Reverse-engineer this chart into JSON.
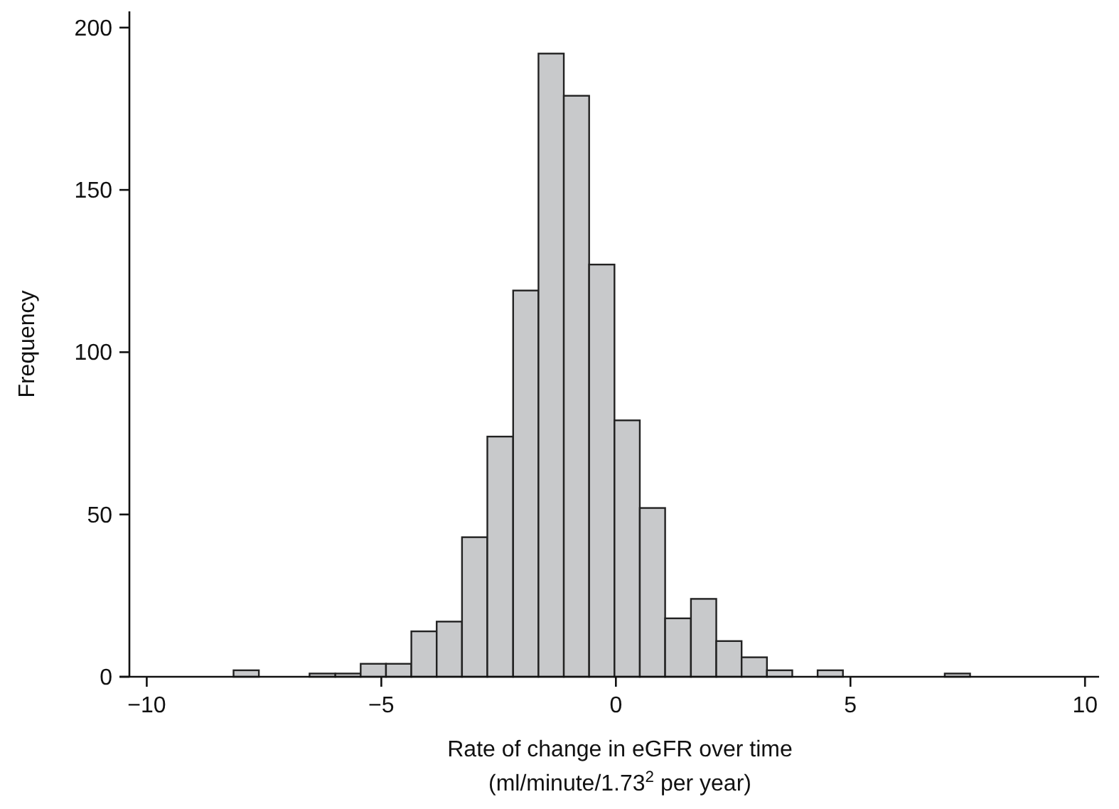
{
  "chart_data": {
    "type": "histogram",
    "xlabel": "Rate of change in eGFR over time\n(ml/minute/1.73$^{2}$ per year)",
    "ylabel": "Frequency",
    "bins": [
      -8.15,
      -7.61,
      -6.53,
      -5.98,
      -5.44,
      -4.9,
      -4.36,
      -3.82,
      -3.28,
      -2.74,
      -2.19,
      -1.65,
      -1.11,
      -0.57,
      -0.03,
      0.51,
      1.05,
      1.6,
      2.14,
      2.68,
      3.22,
      3.76,
      4.3,
      4.84,
      7.01,
      7.55
    ],
    "values": [
      2,
      0,
      1,
      1,
      4,
      4,
      14,
      17,
      43,
      74,
      119,
      192,
      179,
      127,
      79,
      52,
      18,
      24,
      11,
      6,
      2,
      0,
      2,
      0,
      1
    ],
    "color": "#c8c9cb",
    "xlim": [
      -10.37,
      10.3
    ],
    "xticks": [
      {
        "value": -10,
        "label": "−10"
      },
      {
        "value": -5,
        "label": "−5"
      },
      0,
      5,
      10
    ],
    "ylim": [
      0,
      205
    ],
    "yticks": [
      0,
      50,
      100,
      150,
      200
    ],
    "grid": false
  }
}
